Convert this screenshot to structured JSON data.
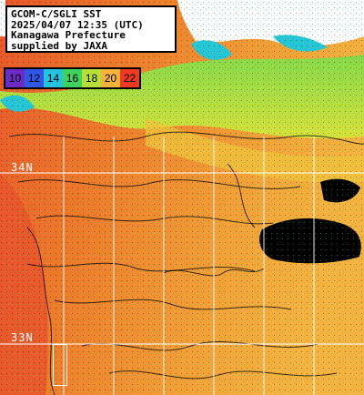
{
  "info": {
    "line1": "GCOM-C/SGLI SST",
    "line2": "2025/04/07 12:35 (UTC)",
    "line3": "Kanagawa Prefecture",
    "line4": "supplied by JAXA"
  },
  "colorbar": [
    {
      "label": "10",
      "color": "#6a2cc4"
    },
    {
      "label": "12",
      "color": "#2f57e6"
    },
    {
      "label": "14",
      "color": "#25c3df"
    },
    {
      "label": "16",
      "color": "#3fd25c"
    },
    {
      "label": "18",
      "color": "#b6df3a"
    },
    {
      "label": "20",
      "color": "#f6b23a"
    },
    {
      "label": "22",
      "color": "#ee3a22"
    }
  ],
  "grid_labels": {
    "lat_upper": "34N",
    "lat_lower": "33N"
  },
  "colors": {
    "sea_warm": "#ee7a2a",
    "sea_hot": "#e9552a",
    "sea_mid": "#f4a238",
    "coast_green": "#86d84a",
    "coast_yellow": "#d8e23a",
    "land": "#ffffff",
    "cloud": "#000000",
    "shallow_cyan": "#27c6d6",
    "contour": "#000000",
    "grid": "#ffffff"
  }
}
